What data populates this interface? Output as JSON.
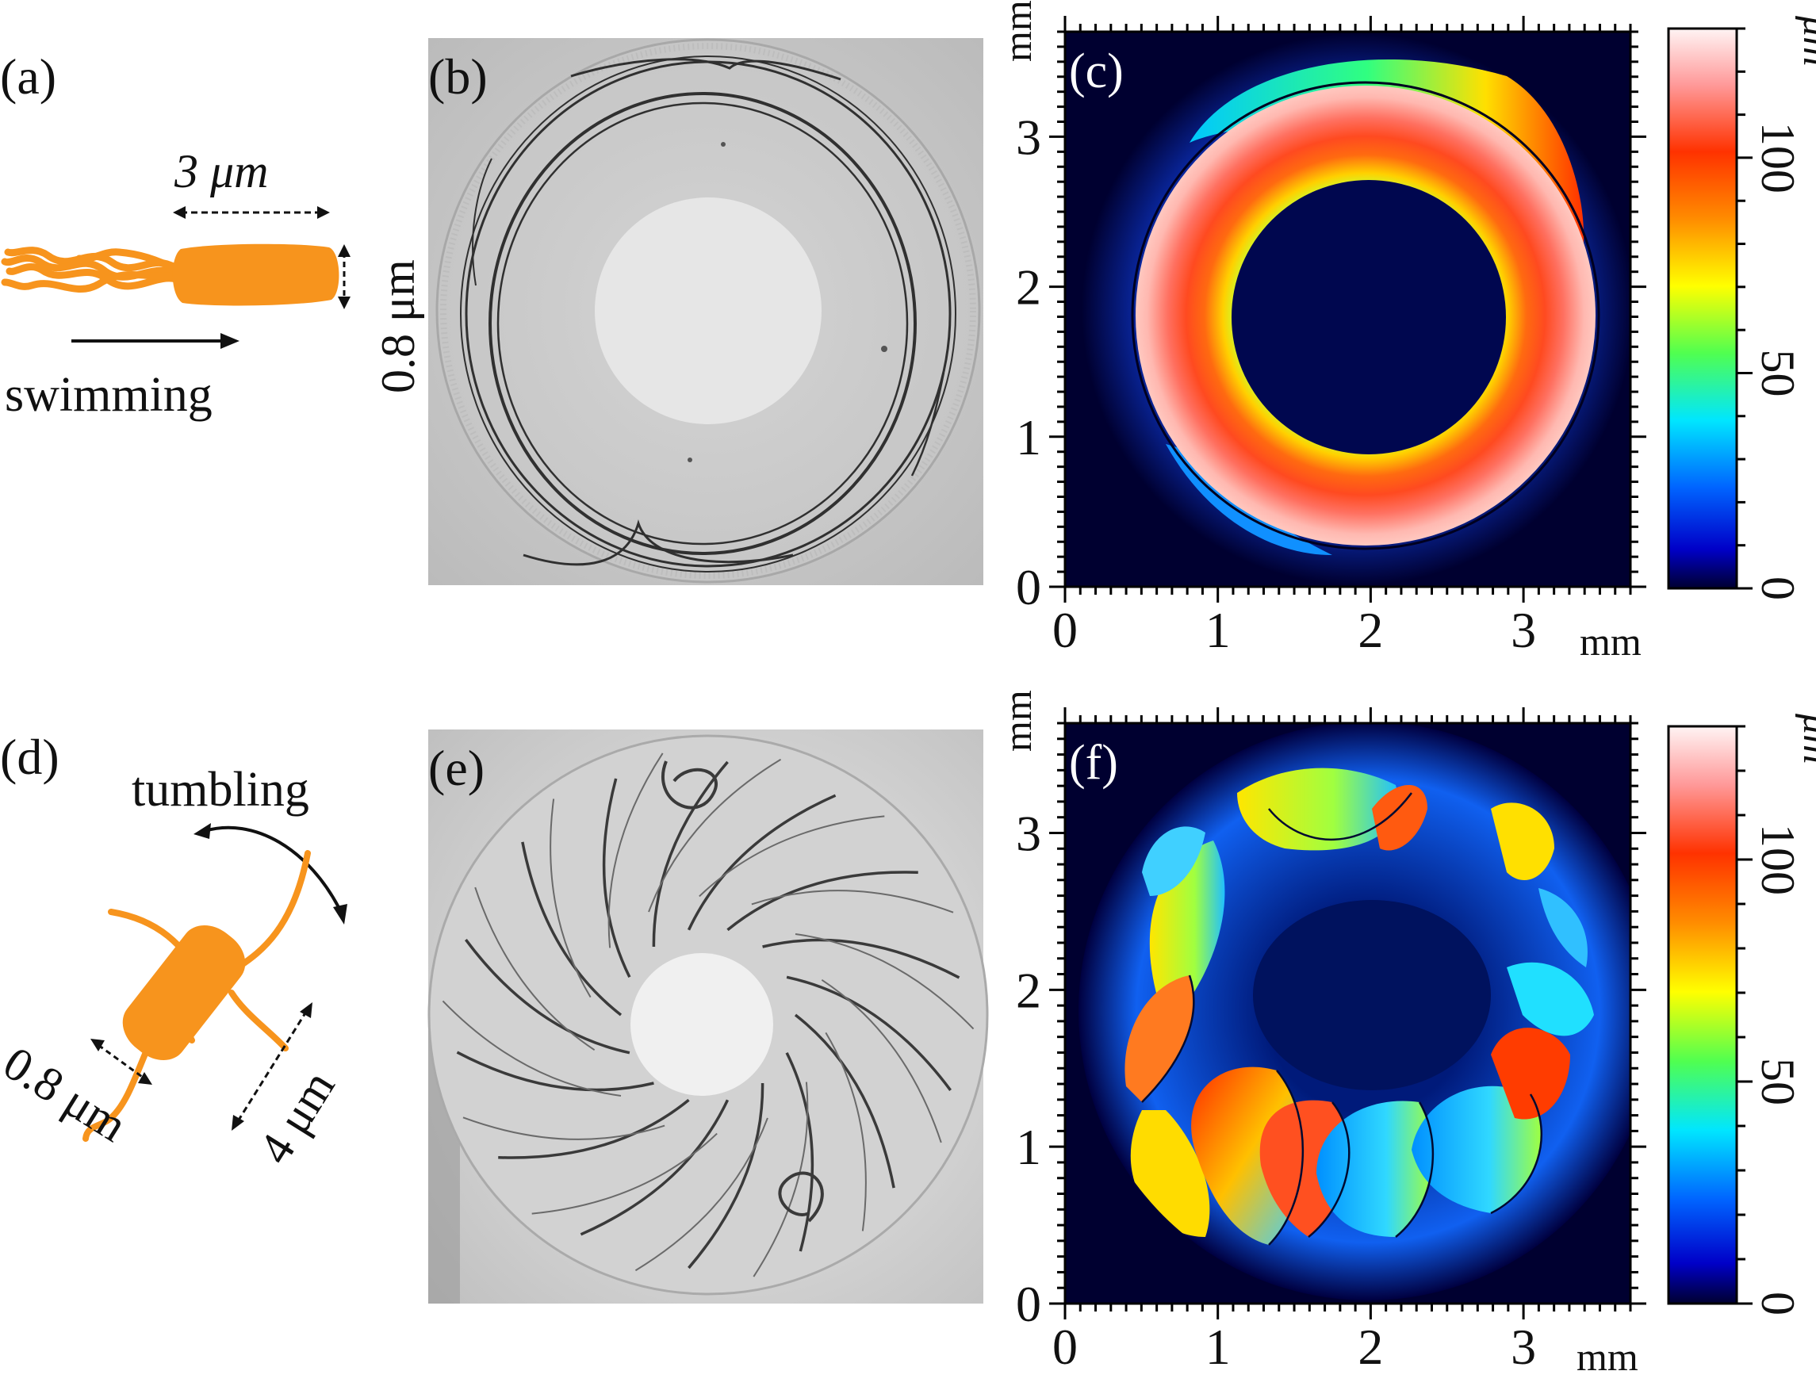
{
  "figure": {
    "panels": {
      "a": {
        "label": "(a)",
        "length": "3 μm",
        "width": "0.8 μm",
        "motion": "swimming"
      },
      "b": {
        "label": "(b)"
      },
      "c": {
        "label": "(c)"
      },
      "d": {
        "label": "(d)",
        "motion": "tumbling",
        "width": "0.8 μm",
        "length": "4 μm"
      },
      "e": {
        "label": "(e)"
      },
      "f": {
        "label": "(f)"
      }
    },
    "axes": {
      "ticks": [
        "0",
        "1",
        "2",
        "3"
      ],
      "x_unit": "mm",
      "y_unit": "mm"
    },
    "colorbar": {
      "unit": "μm",
      "ticks": [
        "0",
        "50",
        "100"
      ],
      "colormap": "jet",
      "colors": [
        "#000030",
        "#0000c8",
        "#0064ff",
        "#00e6ff",
        "#50ff50",
        "#ffff00",
        "#ff8c00",
        "#ff3200",
        "#ff9a9a",
        "#fff4f4"
      ]
    },
    "chart_data": [
      {
        "type": "heatmap",
        "panel": "c",
        "title": "",
        "xlabel": "mm",
        "ylabel": "mm",
        "xlim": [
          0,
          3.7
        ],
        "ylim": [
          0,
          3.7
        ],
        "colorbar_label": "μm",
        "colorbar_range": [
          0,
          130
        ],
        "colorbar_ticks": [
          0,
          50,
          100
        ],
        "features": {
          "annulus_inner_radius_mm": 0.9,
          "annulus_outer_radius_mm": 1.55,
          "inner_edge_height_um": 75,
          "mid_ring_height_um": 105,
          "outer_edge_height_um": 125,
          "outer_crescent_height_um": 50,
          "drop_radius_mm": 1.75,
          "background_height_um": 0
        }
      },
      {
        "type": "heatmap",
        "panel": "f",
        "title": "",
        "xlabel": "mm",
        "ylabel": "mm",
        "xlim": [
          0,
          3.7
        ],
        "ylim": [
          0,
          3.7
        ],
        "colorbar_label": "μm",
        "colorbar_range": [
          0,
          130
        ],
        "colorbar_ticks": [
          0,
          50,
          100
        ],
        "features": {
          "drop_radius_mm": 1.8,
          "center_region_height_um": 5,
          "max_height_um": 125,
          "pattern": "interlocking crescent folds"
        }
      }
    ]
  }
}
